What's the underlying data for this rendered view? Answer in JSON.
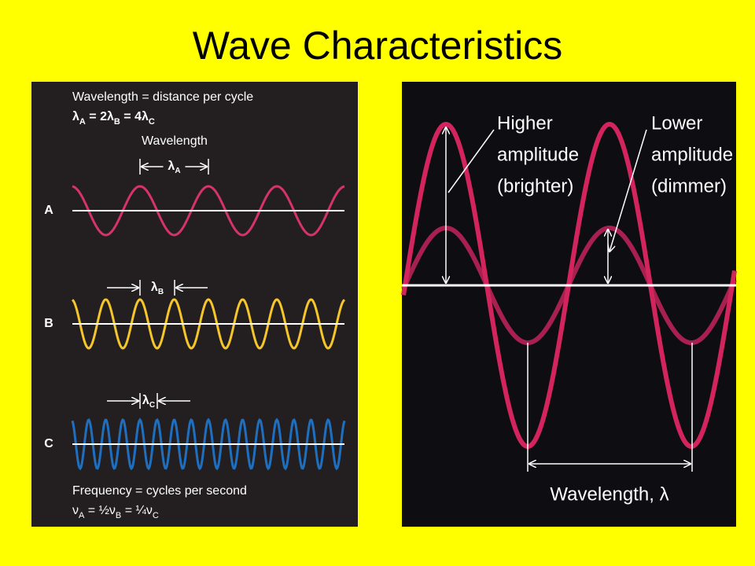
{
  "title": "Wave Characteristics",
  "left_panel": {
    "heading": "Wavelength = distance per cycle",
    "wavelength_formula": [
      "λ",
      "A",
      " = 2λ",
      "B",
      " = 4λ",
      "C"
    ],
    "wavelength_label": "Wavelength",
    "waves": [
      {
        "label": "A",
        "symbol": [
          "λ",
          "A"
        ]
      },
      {
        "label": "B",
        "symbol": [
          "λ",
          "B"
        ]
      },
      {
        "label": "C",
        "symbol": [
          "λ",
          "C"
        ]
      }
    ],
    "footer": "Frequency = cycles per second",
    "frequency_formula": [
      "ν",
      "A",
      " = ½ν",
      "B",
      " = ¼ν",
      "C"
    ]
  },
  "right_panel": {
    "higher_label": [
      "Higher",
      "amplitude",
      "(brighter)"
    ],
    "lower_label": [
      "Lower",
      "amplitude",
      "(dimmer)"
    ],
    "wavelength_label": "Wavelength, λ"
  }
}
